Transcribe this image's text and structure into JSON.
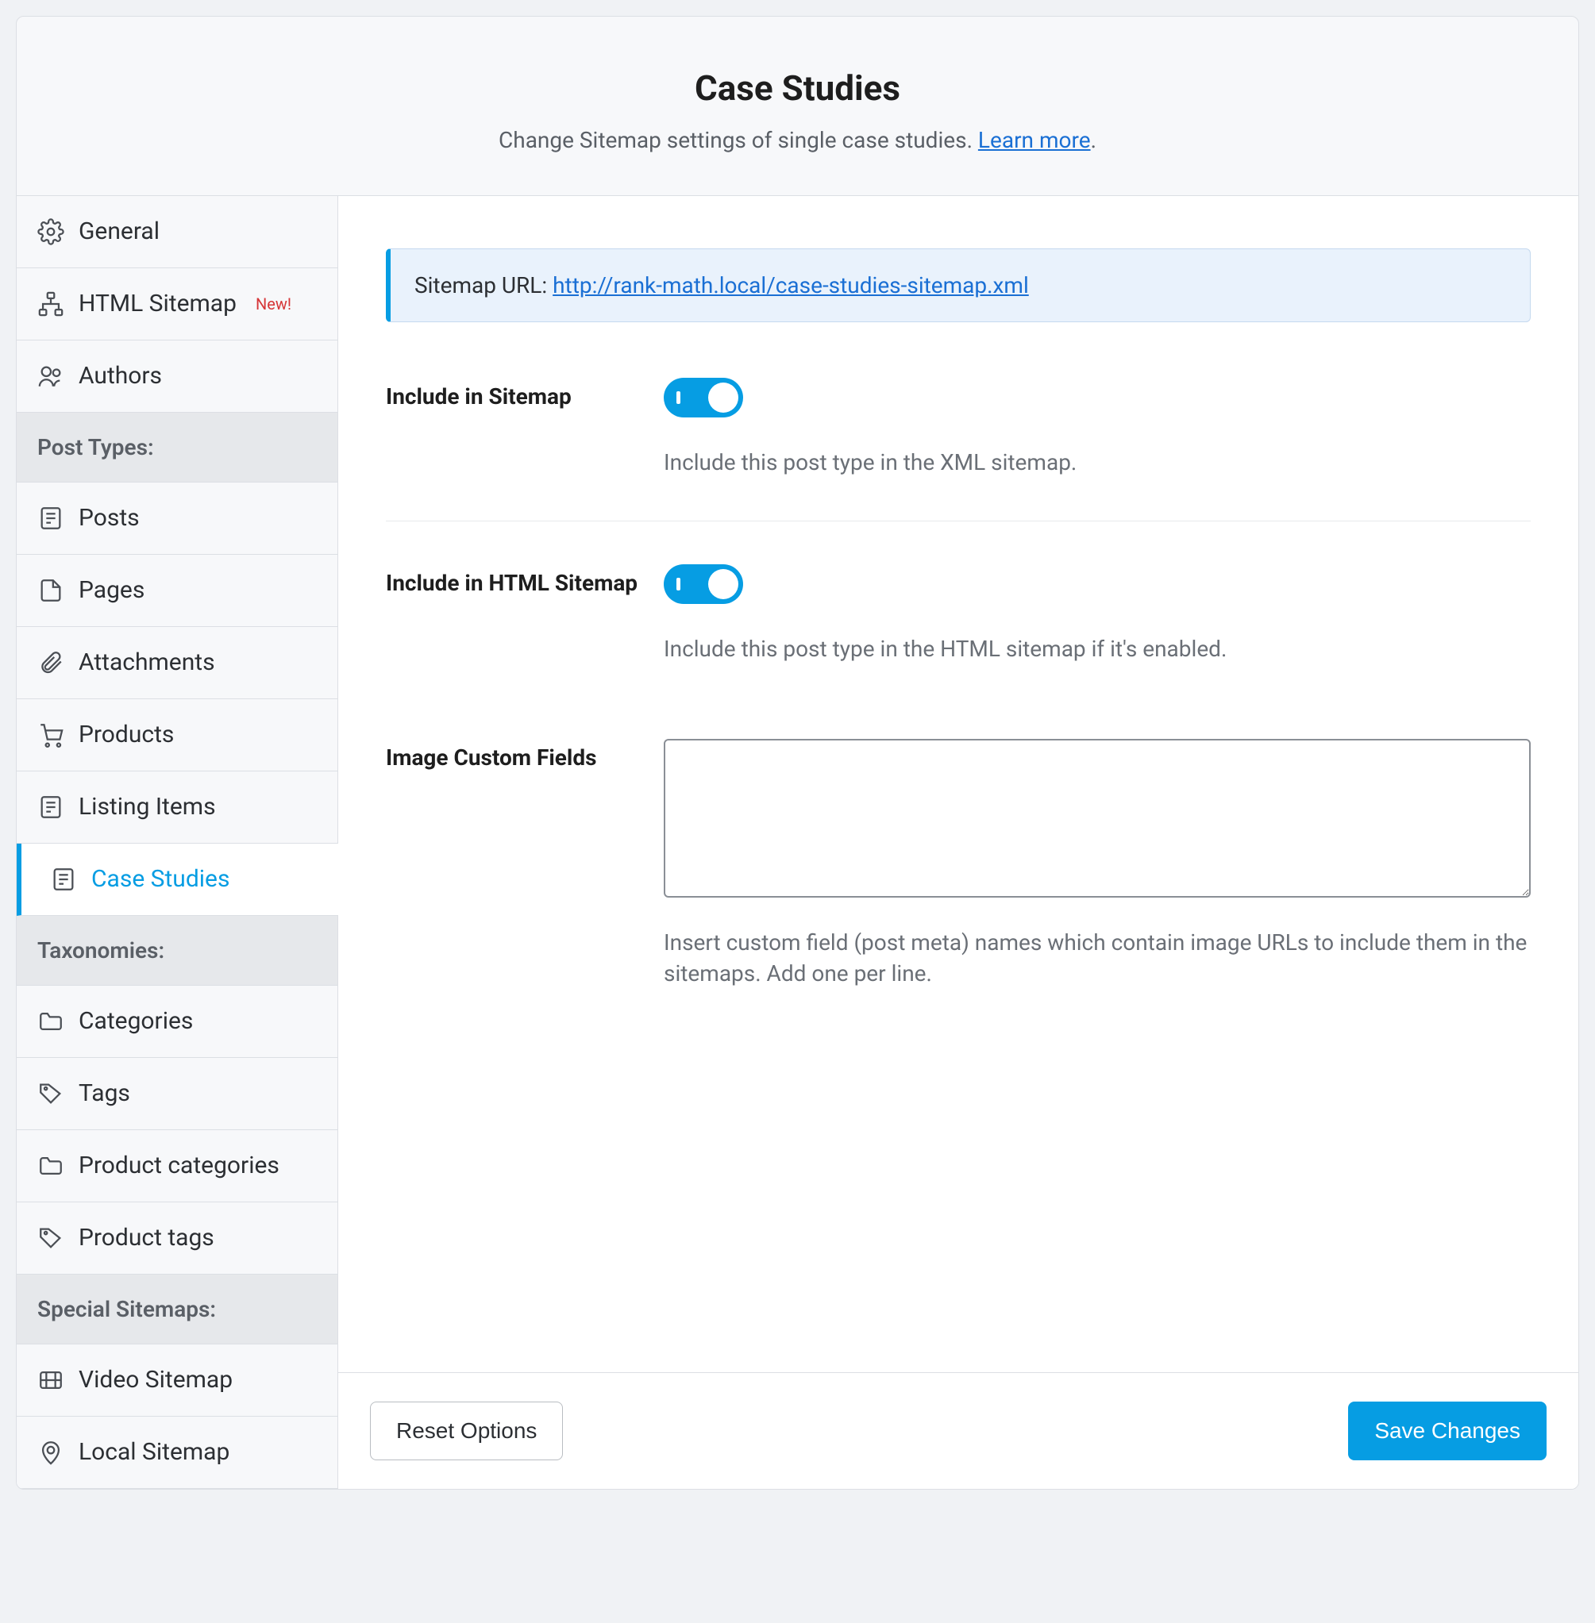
{
  "header": {
    "title": "Case Studies",
    "subtitle_before": "Change Sitemap settings of single case studies. ",
    "learn_more": "Learn more",
    "subtitle_after": "."
  },
  "sidebar": {
    "items_top": [
      {
        "label": "General",
        "icon": "gear"
      },
      {
        "label": "HTML Sitemap",
        "icon": "sitemap",
        "badge": "New!"
      },
      {
        "label": "Authors",
        "icon": "users"
      }
    ],
    "section_post_types": "Post Types:",
    "items_post_types": [
      {
        "label": "Posts",
        "icon": "post"
      },
      {
        "label": "Pages",
        "icon": "page"
      },
      {
        "label": "Attachments",
        "icon": "clip"
      },
      {
        "label": "Products",
        "icon": "cart"
      },
      {
        "label": "Listing Items",
        "icon": "post"
      },
      {
        "label": "Case Studies",
        "icon": "post",
        "active": true
      }
    ],
    "section_tax": "Taxonomies:",
    "items_tax": [
      {
        "label": "Categories",
        "icon": "folder"
      },
      {
        "label": "Tags",
        "icon": "tag"
      },
      {
        "label": "Product categories",
        "icon": "folder"
      },
      {
        "label": "Product tags",
        "icon": "tag"
      }
    ],
    "section_special": "Special Sitemaps:",
    "items_special": [
      {
        "label": "Video Sitemap",
        "icon": "video"
      },
      {
        "label": "Local Sitemap",
        "icon": "pin"
      }
    ]
  },
  "notice": {
    "prefix": "Sitemap URL: ",
    "url": "http://rank-math.local/case-studies-sitemap.xml"
  },
  "fields": {
    "include_sitemap": {
      "label": "Include in Sitemap",
      "help": "Include this post type in the XML sitemap.",
      "value": true
    },
    "include_html": {
      "label": "Include in HTML Sitemap",
      "help": "Include this post type in the HTML sitemap if it's enabled.",
      "value": true
    },
    "custom_fields": {
      "label": "Image Custom Fields",
      "help": "Insert custom field (post meta) names which contain image URLs to include them in the sitemaps. Add one per line.",
      "value": ""
    }
  },
  "footer": {
    "reset": "Reset Options",
    "save": "Save Changes"
  },
  "colors": {
    "accent": "#069de3",
    "link": "#1a6fd4",
    "border": "#dcdfe4",
    "muted": "#6a6f76",
    "badge": "#d63638"
  }
}
